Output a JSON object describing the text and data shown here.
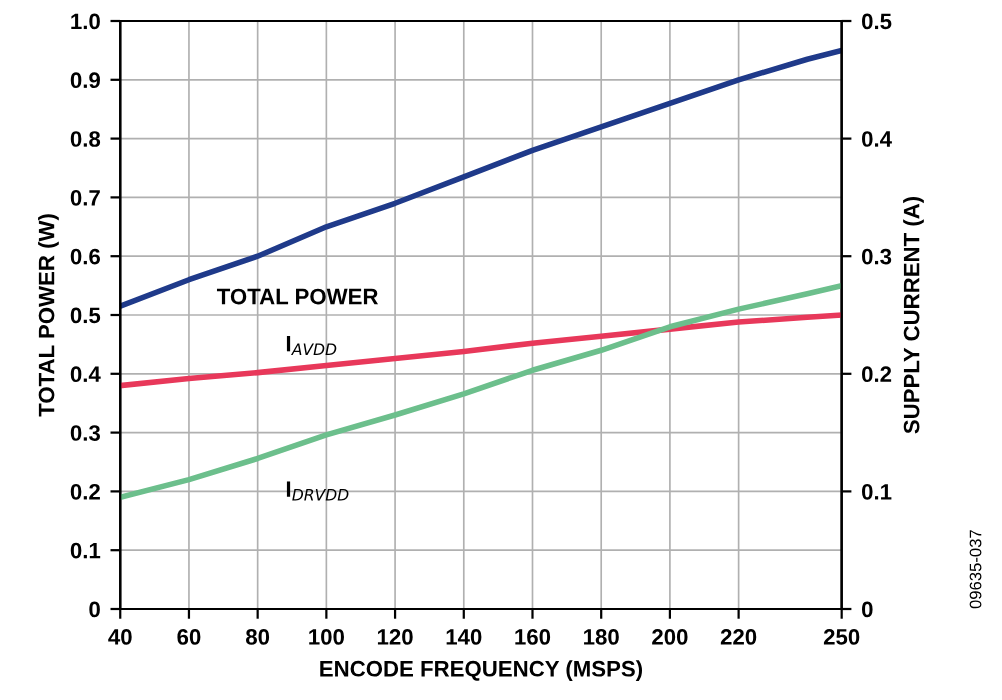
{
  "chart_data": {
    "type": "line",
    "xlabel": "ENCODE FREQUENCY (MSPS)",
    "ylabel": "TOTAL POWER (W)",
    "y2label": "SUPPLY CURRENT (A)",
    "x": [
      40,
      60,
      80,
      100,
      120,
      140,
      160,
      180,
      200,
      220,
      240,
      250
    ],
    "series": [
      {
        "name": "TOTAL POWER",
        "color": "#1f3a8a",
        "values": [
          0.515,
          0.56,
          0.6,
          0.65,
          0.69,
          0.735,
          0.78,
          0.82,
          0.86,
          0.9,
          0.935,
          0.95
        ]
      },
      {
        "name": "I$_{AVDD}$",
        "color": "#e8385a",
        "axis": "y2",
        "values": [
          0.19,
          0.196,
          0.201,
          0.207,
          0.213,
          0.219,
          0.226,
          0.232,
          0.238,
          0.244,
          0.248,
          0.25
        ]
      },
      {
        "name": "I$_{DRVDD}$",
        "color": "#6cbf8c",
        "axis": "y2",
        "values": [
          0.095,
          0.11,
          0.128,
          0.148,
          0.165,
          0.183,
          0.203,
          0.22,
          0.24,
          0.255,
          0.268,
          0.275
        ]
      }
    ],
    "xlim": [
      40,
      250
    ],
    "xticks": [
      40,
      60,
      80,
      100,
      120,
      140,
      160,
      180,
      200,
      220,
      250
    ],
    "ylim": [
      0,
      1.0
    ],
    "yticks": [
      0,
      0.1,
      0.2,
      0.3,
      0.4,
      0.5,
      0.6,
      0.7,
      0.8,
      0.9,
      {
        "value": 1.0,
        "label": "1.0"
      }
    ],
    "y2lim": [
      0,
      0.5
    ],
    "y2ticks": [
      0,
      0.1,
      0.2,
      0.3,
      0.4,
      0.5
    ],
    "grid": true,
    "legend": false,
    "marker": "none",
    "line_style": "solid",
    "annotations": [
      "09635-037"
    ]
  }
}
